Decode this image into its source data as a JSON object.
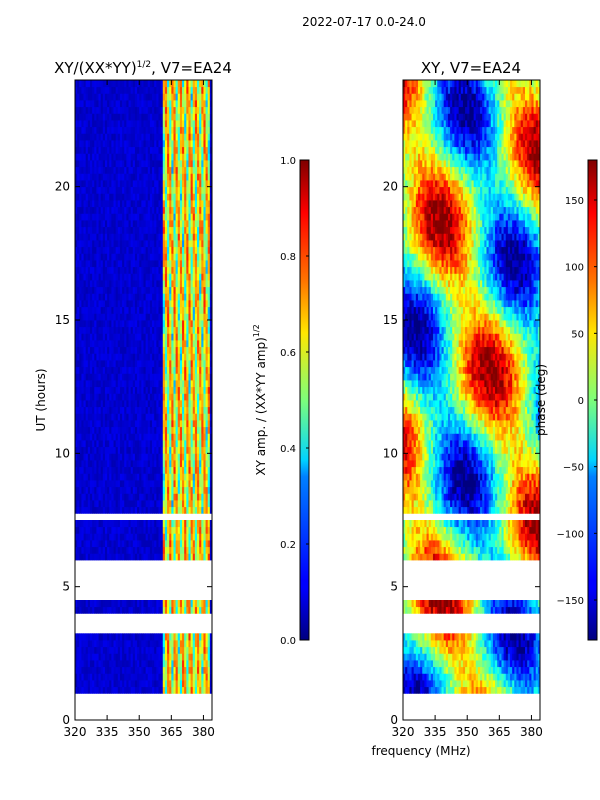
{
  "figure": {
    "suptitle": "2022-07-17 0.0-24.0"
  },
  "chart_data": [
    {
      "type": "heatmap",
      "title": "XY/(XX*YY)",
      "title_exponent": "1/2",
      "title_suffix": ", V7=EA24",
      "xlabel": "",
      "ylabel": "UT (hours)",
      "xlim": [
        320,
        384
      ],
      "ylim": [
        0,
        24
      ],
      "xticks": [
        320,
        335,
        350,
        365,
        380
      ],
      "yticks": [
        0,
        5,
        10,
        15,
        20
      ],
      "xtick_labels": [
        "320",
        "335",
        "350",
        "365",
        "380"
      ],
      "ytick_labels": [
        "0",
        "5",
        "10",
        "15",
        "20"
      ],
      "colormap": "jet",
      "colorbar": {
        "label": "XY amp. / (XX*YY amp)",
        "label_exponent": "1/2",
        "range": [
          0.0,
          1.0
        ],
        "ticks": [
          0.0,
          0.2,
          0.4,
          0.6,
          0.8,
          1.0
        ],
        "tick_labels": [
          "0.0",
          "0.2",
          "0.4",
          "0.6",
          "0.8",
          "1.0"
        ]
      },
      "data_gaps_hours": [
        [
          0.0,
          0.9
        ],
        [
          3.3,
          4.1
        ],
        [
          4.6,
          6.0
        ],
        [
          7.5,
          7.7
        ]
      ],
      "bright_band_mhz": [
        361,
        383
      ],
      "background_value": 0.05
    },
    {
      "type": "heatmap",
      "title": "XY, V7=EA24",
      "xlabel": "frequency (MHz)",
      "ylabel": "",
      "xlim": [
        320,
        384
      ],
      "ylim": [
        0,
        24
      ],
      "xticks": [
        320,
        335,
        350,
        365,
        380
      ],
      "yticks": [
        0,
        5,
        10,
        15,
        20
      ],
      "xtick_labels": [
        "320",
        "335",
        "350",
        "365",
        "380"
      ],
      "ytick_labels": [
        "0",
        "5",
        "10",
        "15",
        "20"
      ],
      "colormap": "jet",
      "colorbar": {
        "label": "phase (deg)",
        "range": [
          -180,
          180
        ],
        "ticks": [
          -150,
          -100,
          -50,
          0,
          50,
          100,
          150
        ],
        "tick_labels": [
          "−150",
          "−100",
          "−50",
          "0",
          "50",
          "100",
          "150"
        ]
      },
      "data_gaps_hours": [
        [
          0.0,
          0.9
        ],
        [
          3.3,
          4.1
        ],
        [
          4.6,
          6.0
        ],
        [
          7.5,
          7.7
        ]
      ]
    }
  ]
}
